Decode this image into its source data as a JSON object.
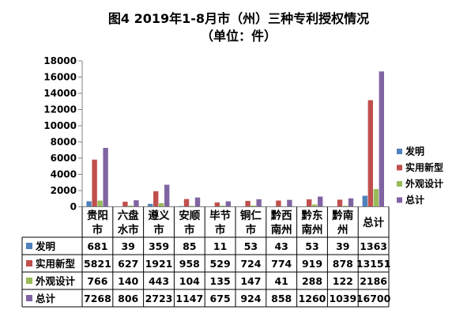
{
  "chart_data": {
    "type": "bar",
    "title_line1": "图4  2019年1-8月市（州）三种专利授权情况",
    "title_line2": "（单位：件）",
    "categories": [
      [
        "贵阳",
        "市"
      ],
      [
        "六盘",
        "水市"
      ],
      [
        "遵义",
        "市"
      ],
      [
        "安顺",
        "市"
      ],
      [
        "毕节",
        "市"
      ],
      [
        "铜仁",
        "市"
      ],
      [
        "黔西",
        "南州"
      ],
      [
        "黔东",
        "南州"
      ],
      [
        "黔南",
        "州"
      ],
      [
        "总计"
      ]
    ],
    "series": [
      {
        "name": "发明",
        "color": "#4f81bd",
        "values": [
          681,
          39,
          359,
          85,
          11,
          53,
          43,
          53,
          39,
          1363
        ]
      },
      {
        "name": "实用新型",
        "color": "#c0504d",
        "values": [
          5821,
          627,
          1921,
          958,
          529,
          724,
          774,
          919,
          878,
          13151
        ]
      },
      {
        "name": "外观设计",
        "color": "#9bbb59",
        "values": [
          766,
          140,
          443,
          104,
          135,
          147,
          41,
          288,
          122,
          2186
        ]
      },
      {
        "name": "总计",
        "color": "#8064a2",
        "values": [
          7268,
          806,
          2723,
          1147,
          675,
          924,
          858,
          1260,
          1039,
          16700
        ]
      }
    ],
    "y_ticks": [
      "0",
      "2000",
      "4000",
      "6000",
      "8000",
      "10000",
      "12000",
      "14000",
      "16000",
      "18000"
    ],
    "ylim": [
      0,
      18000
    ],
    "grid": false,
    "legend_position": "right",
    "data_table": true
  }
}
